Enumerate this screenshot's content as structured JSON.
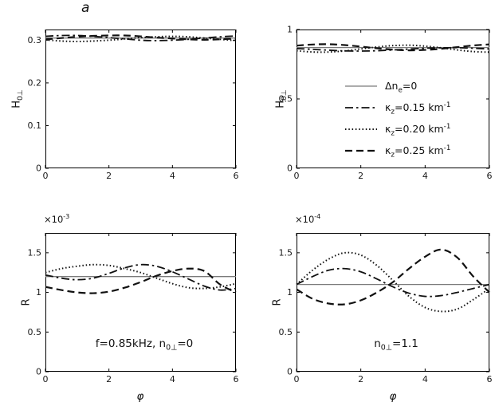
{
  "figure_label": "a",
  "colors": {
    "frame": "#000000",
    "tick_text": "#1a1a1a",
    "reference_gray": "#7a7a7a",
    "series_black": "#111111"
  },
  "line_styles": {
    "solid": {
      "color": "#7a7a7a",
      "width": 1.3,
      "dash": ""
    },
    "dashdot": {
      "color": "#111111",
      "width": 1.8,
      "dash": "10 4 2.5 4"
    },
    "dotted": {
      "color": "#111111",
      "width": 2.0,
      "dash": "1.5 2.8"
    },
    "dashed": {
      "color": "#111111",
      "width": 2.2,
      "dash": "9 5"
    }
  },
  "legend": {
    "entries": [
      {
        "style": "solid",
        "label": [
          "Δn",
          "sub:e",
          "=0"
        ]
      },
      {
        "style": "dashdot",
        "label": [
          "κ",
          "sub:z",
          "=0.15 km",
          "sup:-1"
        ]
      },
      {
        "style": "dotted",
        "label": [
          "κ",
          "sub:z",
          "=0.20 km",
          "sup:-1"
        ]
      },
      {
        "style": "dashed",
        "label": [
          "κ",
          "sub:z",
          "=0.25 km",
          "sup:-1"
        ]
      }
    ]
  },
  "chart_data": [
    {
      "id": "top-left",
      "type": "line",
      "ylabel": [
        "H",
        "sub:0⊥"
      ],
      "xlabel": null,
      "offset_text": null,
      "annotation": null,
      "xlim": [
        0,
        6
      ],
      "ylim": [
        0,
        0.325
      ],
      "xticks": [
        "0",
        "2",
        "4",
        "6"
      ],
      "xtick_vals": [
        0,
        2,
        4,
        6
      ],
      "yticks": [
        "0",
        "0.1",
        "0.2",
        "0.3"
      ],
      "ytick_vals": [
        0,
        0.1,
        0.2,
        0.3
      ],
      "grid": false,
      "series": [
        {
          "name": "Δn_e=0",
          "style": "solid",
          "x": [
            0,
            6
          ],
          "y": [
            0.305,
            0.305
          ]
        },
        {
          "name": "κ_z=0.15 km⁻¹",
          "style": "dashdot",
          "x": [
            0,
            0.5,
            1,
            1.5,
            2,
            2.5,
            3,
            3.5,
            4,
            4.5,
            5,
            5.5,
            6
          ],
          "y": [
            0.309,
            0.311,
            0.311,
            0.309,
            0.306,
            0.303,
            0.3,
            0.299,
            0.3,
            0.302,
            0.305,
            0.308,
            0.31
          ]
        },
        {
          "name": "κ_z=0.20 km⁻¹",
          "style": "dotted",
          "x": [
            0,
            0.5,
            1,
            1.5,
            2,
            2.5,
            3,
            3.5,
            4,
            4.5,
            5,
            5.5,
            6
          ],
          "y": [
            0.301,
            0.298,
            0.297,
            0.298,
            0.3,
            0.303,
            0.306,
            0.308,
            0.309,
            0.308,
            0.305,
            0.302,
            0.299
          ]
        },
        {
          "name": "κ_z=0.25 km⁻¹",
          "style": "dashed",
          "x": [
            0,
            0.5,
            1,
            1.5,
            2,
            2.5,
            3,
            3.5,
            4,
            4.5,
            5,
            5.5,
            6
          ],
          "y": [
            0.302,
            0.305,
            0.308,
            0.31,
            0.311,
            0.311,
            0.309,
            0.306,
            0.304,
            0.302,
            0.301,
            0.302,
            0.304
          ]
        }
      ]
    },
    {
      "id": "top-right",
      "type": "line",
      "ylabel": [
        "H",
        "sub:0⊥"
      ],
      "xlabel": null,
      "offset_text": null,
      "annotation": null,
      "xlim": [
        0,
        6
      ],
      "ylim": [
        0,
        1
      ],
      "xticks": [
        "0",
        "2",
        "4",
        "6"
      ],
      "xtick_vals": [
        0,
        2,
        4,
        6
      ],
      "yticks": [
        "0",
        "0.5",
        "1"
      ],
      "ytick_vals": [
        0,
        0.5,
        1
      ],
      "grid": false,
      "series": [
        {
          "name": "Δn_e=0",
          "style": "solid",
          "x": [
            0,
            6
          ],
          "y": [
            0.87,
            0.87
          ]
        },
        {
          "name": "κ_z=0.15 km⁻¹",
          "style": "dashdot",
          "x": [
            0,
            0.5,
            1,
            1.5,
            2,
            2.5,
            3,
            3.5,
            4,
            4.5,
            5,
            5.5,
            6
          ],
          "y": [
            0.863,
            0.857,
            0.851,
            0.846,
            0.845,
            0.847,
            0.853,
            0.859,
            0.865,
            0.868,
            0.869,
            0.865,
            0.86
          ]
        },
        {
          "name": "κ_z=0.20 km⁻¹",
          "style": "dotted",
          "x": [
            0,
            0.5,
            1,
            1.5,
            2,
            2.5,
            3,
            3.5,
            4,
            4.5,
            5,
            5.5,
            6
          ],
          "y": [
            0.847,
            0.838,
            0.838,
            0.846,
            0.86,
            0.874,
            0.884,
            0.887,
            0.88,
            0.868,
            0.853,
            0.841,
            0.837
          ]
        },
        {
          "name": "κ_z=0.25 km⁻¹",
          "style": "dashed",
          "x": [
            0,
            0.5,
            1,
            1.5,
            2,
            2.5,
            3,
            3.5,
            4,
            4.5,
            5,
            5.5,
            6
          ],
          "y": [
            0.884,
            0.892,
            0.894,
            0.888,
            0.877,
            0.865,
            0.855,
            0.85,
            0.853,
            0.861,
            0.873,
            0.885,
            0.893
          ]
        }
      ]
    },
    {
      "id": "bottom-left",
      "type": "line",
      "ylabel": [
        "R"
      ],
      "xlabel": [
        "φ"
      ],
      "offset_text": [
        "×10",
        "sup:-3"
      ],
      "annotation": [
        "f=0.85kHz,  n",
        "sub:0⊥",
        "=0"
      ],
      "xlim": [
        0,
        6
      ],
      "ylim": [
        0,
        1.75
      ],
      "xticks": [
        "0",
        "2",
        "4",
        "6"
      ],
      "xtick_vals": [
        0,
        2,
        4,
        6
      ],
      "yticks": [
        "0",
        "0.5",
        "1",
        "1.5"
      ],
      "ytick_vals": [
        0,
        0.5,
        1,
        1.5
      ],
      "grid": false,
      "units_multiplier": "1e-3",
      "series": [
        {
          "name": "Δn_e=0",
          "style": "solid",
          "x": [
            0,
            6
          ],
          "y": [
            1.2,
            1.2
          ]
        },
        {
          "name": "κ_z=0.15 km⁻¹",
          "style": "dashdot",
          "x": [
            0,
            0.5,
            1,
            1.5,
            2,
            2.5,
            3,
            3.5,
            4,
            4.5,
            5,
            5.5,
            6
          ],
          "y": [
            1.22,
            1.18,
            1.16,
            1.18,
            1.24,
            1.31,
            1.35,
            1.33,
            1.26,
            1.17,
            1.08,
            1.03,
            1.05
          ]
        },
        {
          "name": "κ_z=0.20 km⁻¹",
          "style": "dotted",
          "x": [
            0,
            0.5,
            1,
            1.5,
            2,
            2.5,
            3,
            3.5,
            4,
            4.5,
            5,
            5.5,
            6
          ],
          "y": [
            1.25,
            1.3,
            1.33,
            1.35,
            1.34,
            1.3,
            1.25,
            1.18,
            1.11,
            1.06,
            1.05,
            1.07,
            1.11
          ]
        },
        {
          "name": "κ_z=0.25 km⁻¹",
          "style": "dashed",
          "x": [
            0,
            0.5,
            1,
            1.5,
            2,
            2.5,
            3,
            3.5,
            4,
            4.5,
            5,
            5.5,
            6
          ],
          "y": [
            1.07,
            1.03,
            1.0,
            0.99,
            1.01,
            1.06,
            1.13,
            1.21,
            1.27,
            1.3,
            1.27,
            1.1,
            1.0
          ]
        }
      ]
    },
    {
      "id": "bottom-right",
      "type": "line",
      "ylabel": [
        "R"
      ],
      "xlabel": [
        "φ"
      ],
      "offset_text": [
        "×10",
        "sup:-4"
      ],
      "annotation": [
        "n",
        "sub:0⊥",
        "=1.1"
      ],
      "xlim": [
        0,
        6
      ],
      "ylim": [
        0,
        1.75
      ],
      "xticks": [
        "0",
        "2",
        "4",
        "6"
      ],
      "xtick_vals": [
        0,
        2,
        4,
        6
      ],
      "yticks": [
        "0",
        "0.5",
        "1",
        "1.5"
      ],
      "ytick_vals": [
        0,
        0.5,
        1,
        1.5
      ],
      "grid": false,
      "units_multiplier": "1e-4",
      "series": [
        {
          "name": "Δn_e=0",
          "style": "solid",
          "x": [
            0,
            6
          ],
          "y": [
            1.1,
            1.1
          ]
        },
        {
          "name": "κ_z=0.15 km⁻¹",
          "style": "dashdot",
          "x": [
            0,
            0.5,
            1,
            1.5,
            2,
            2.5,
            3,
            3.5,
            4,
            4.5,
            5,
            5.5,
            6
          ],
          "y": [
            1.1,
            1.2,
            1.28,
            1.3,
            1.26,
            1.17,
            1.07,
            0.99,
            0.95,
            0.96,
            1.0,
            1.05,
            1.1
          ]
        },
        {
          "name": "κ_z=0.20 km⁻¹",
          "style": "dotted",
          "x": [
            0,
            0.5,
            1,
            1.5,
            2,
            2.5,
            3,
            3.5,
            4,
            4.5,
            5,
            5.5,
            6
          ],
          "y": [
            1.1,
            1.28,
            1.42,
            1.5,
            1.47,
            1.34,
            1.15,
            0.95,
            0.81,
            0.76,
            0.79,
            0.91,
            1.05
          ]
        },
        {
          "name": "κ_z=0.25 km⁻¹",
          "style": "dashed",
          "x": [
            0,
            0.5,
            1,
            1.5,
            2,
            2.5,
            3,
            3.5,
            4,
            4.5,
            5,
            5.5,
            6
          ],
          "y": [
            1.04,
            0.92,
            0.86,
            0.85,
            0.9,
            1.0,
            1.13,
            1.3,
            1.45,
            1.54,
            1.44,
            1.2,
            1.0
          ]
        }
      ]
    }
  ]
}
